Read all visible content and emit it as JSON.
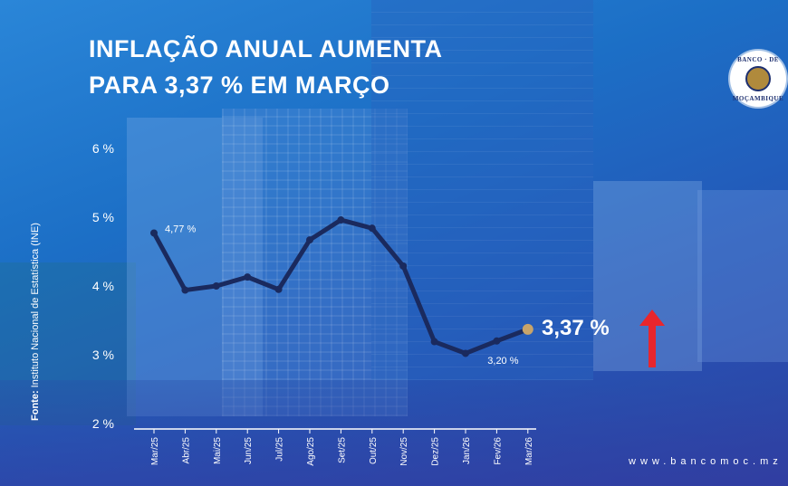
{
  "header": {
    "title_line1": "INFLAÇÃO ANUAL AUMENTA",
    "title_line2": "PARA 3,37 % EM MARÇO"
  },
  "logo": {
    "text_top": "BANCO · DE",
    "text_bottom": "MOÇAMBIQUE"
  },
  "source": {
    "label": "Fonte:",
    "text": "Instituto Nacional de Estatística (INE)"
  },
  "highlight": {
    "value": "3,37 %",
    "arrow_color": "#e8262d",
    "arrow_icon": "arrow-up-icon"
  },
  "footer": {
    "website": "www.bancomoc.mz"
  },
  "colors": {
    "line": "#1a2a5e",
    "last_marker": "#c8a46a",
    "text": "#ffffff"
  },
  "chart_data": {
    "type": "line",
    "categories": [
      "Mar/25",
      "Abr/25",
      "Mai/25",
      "Jun/25",
      "Jul/25",
      "Ago/25",
      "Set/25",
      "Out/25",
      "Nov/25",
      "Dez/25",
      "Jan/26",
      "Fev/26",
      "Mar/26"
    ],
    "series": [
      {
        "values": [
          4.77,
          3.94,
          4.0,
          4.13,
          3.95,
          4.67,
          4.96,
          4.84,
          4.29,
          3.19,
          3.02,
          3.2,
          3.37
        ]
      }
    ],
    "ylim": [
      2,
      6
    ],
    "yticks": [
      "2 %",
      "3 %",
      "4 %",
      "5 %",
      "6 %"
    ],
    "yticks_values": [
      2,
      3,
      4,
      5,
      6
    ],
    "data_labels": [
      {
        "index": 0,
        "text": "4,77 %"
      },
      {
        "index": 11,
        "text": "3,20 %"
      }
    ],
    "grid": false
  }
}
